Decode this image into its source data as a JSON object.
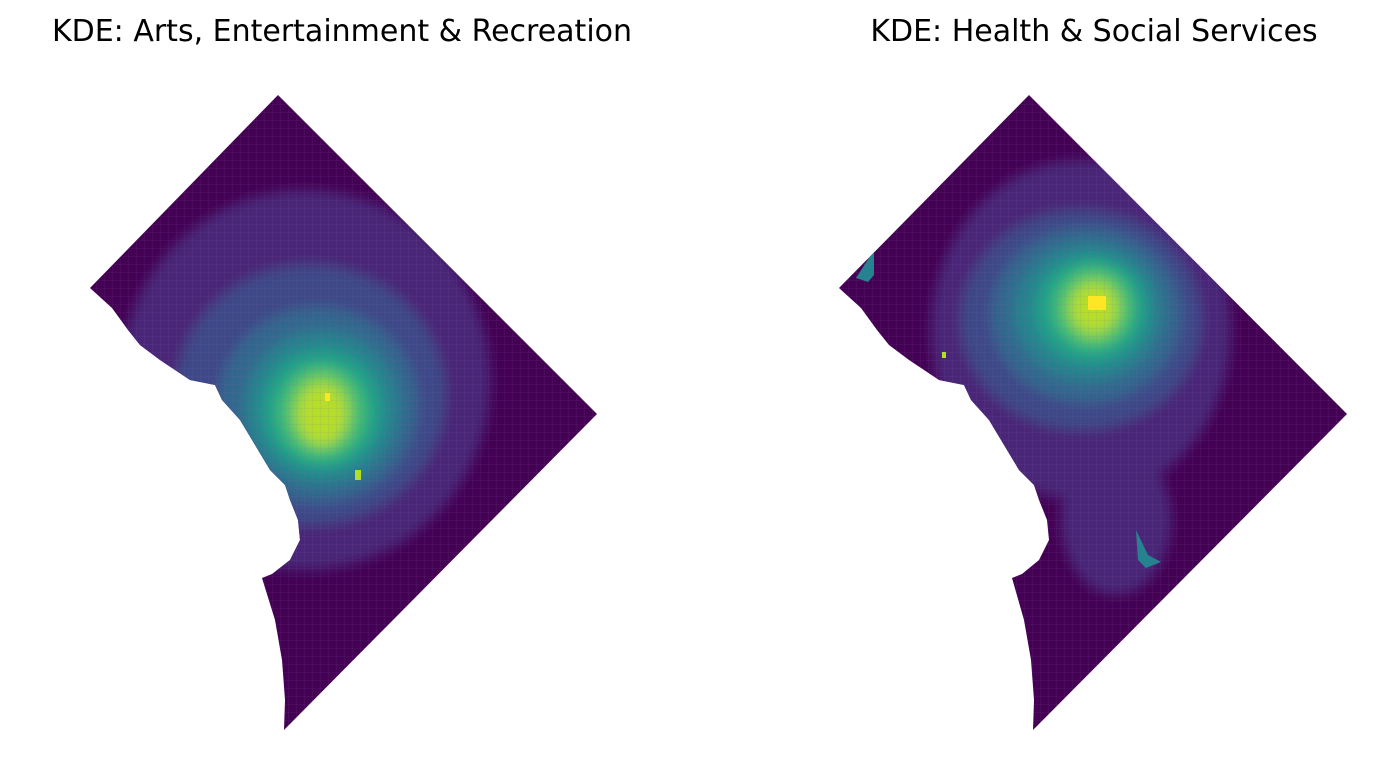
{
  "maps": [
    {
      "title": "KDE: Arts, Entertainment & Recreation",
      "density_peak": "south-center (downtown)"
    },
    {
      "title": "KDE: Health & Social Services",
      "density_peak": "north-center"
    }
  ],
  "colormap": [
    "#440154",
    "#482878",
    "#3e4989",
    "#31688e",
    "#26828e",
    "#1f9e89",
    "#35b779",
    "#6ece58",
    "#b5de2b",
    "#fde725"
  ]
}
